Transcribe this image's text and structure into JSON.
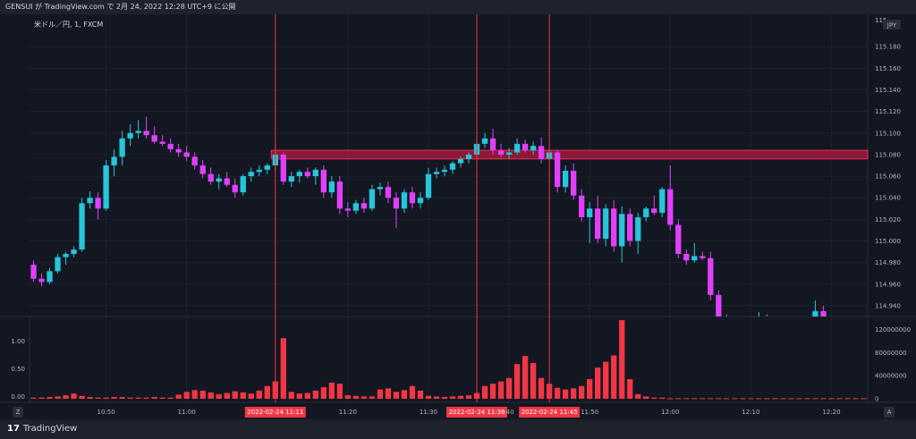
{
  "header": {
    "title": "GENSUI が TradingView.com で 2月 24, 2022 12:28 UTC+9 に公開"
  },
  "footer": {
    "brand": "TradingView",
    "logo_mark": "17",
    "left_button": "Z",
    "right_button": "A"
  },
  "colors": {
    "background": "#131722",
    "up": "#26c6da",
    "down": "#e040fb",
    "marker": "#f23645",
    "zone": "#a3173b",
    "grid": "#1e222d",
    "volume": "#f23645"
  },
  "chart_data": {
    "type": "candlestick",
    "symbol": "米ドル／円, 1, FXCM",
    "currency_badge": "JPY",
    "price_axis": {
      "ylim": [
        114.93,
        115.21
      ],
      "ticks": [
        "115.180",
        "115.160",
        "115.140",
        "115.120",
        "115.100",
        "115.080",
        "115.060",
        "115.040",
        "115.020",
        "115.000",
        "114.980",
        "114.960",
        "114.940"
      ],
      "top_label": "115"
    },
    "volume_panel": {
      "left_ticks": [
        "1.00",
        "0.50",
        "0.00"
      ],
      "right_ticks": [
        "120000000",
        "80000000",
        "40000000",
        "0"
      ],
      "ylim": [
        0,
        130000000
      ]
    },
    "time_axis": {
      "labels": [
        {
          "index": 9,
          "label": "10:50"
        },
        {
          "index": 19,
          "label": "11:00"
        },
        {
          "index": 39,
          "label": "11:20"
        },
        {
          "index": 49,
          "label": "11:30"
        },
        {
          "index": 59,
          "label": ":40"
        },
        {
          "index": 69,
          "label": "11:50"
        },
        {
          "index": 79,
          "label": "12:00"
        },
        {
          "index": 89,
          "label": "12:10"
        },
        {
          "index": 99,
          "label": "12:20"
        }
      ],
      "first_time": "10:41",
      "candle_count": 104
    },
    "markers": [
      {
        "index": 30,
        "label": "2022-02-24 11:11"
      },
      {
        "index": 55,
        "label": "2022-02-24 11:36"
      },
      {
        "index": 64,
        "label": "2022-02-24 11:45"
      }
    ],
    "resistance_zone": {
      "from_index": 30,
      "price_top": 115.084,
      "price_bottom": 115.076,
      "extends": "right"
    },
    "candles": [
      [
        114.978,
        114.982,
        114.962,
        114.965
      ],
      [
        114.965,
        114.97,
        114.958,
        114.962
      ],
      [
        114.962,
        114.975,
        114.96,
        114.972
      ],
      [
        114.972,
        114.988,
        114.97,
        114.985
      ],
      [
        114.985,
        114.99,
        114.978,
        114.988
      ],
      [
        114.988,
        114.995,
        114.985,
        114.992
      ],
      [
        114.992,
        115.04,
        114.99,
        115.035
      ],
      [
        115.035,
        115.046,
        115.03,
        115.04
      ],
      [
        115.04,
        115.045,
        115.02,
        115.03
      ],
      [
        115.03,
        115.075,
        115.028,
        115.07
      ],
      [
        115.07,
        115.085,
        115.06,
        115.078
      ],
      [
        115.078,
        115.102,
        115.07,
        115.095
      ],
      [
        115.095,
        115.108,
        115.088,
        115.1
      ],
      [
        115.1,
        115.112,
        115.095,
        115.102
      ],
      [
        115.102,
        115.115,
        115.095,
        115.098
      ],
      [
        115.098,
        115.106,
        115.09,
        115.092
      ],
      [
        115.092,
        115.098,
        115.088,
        115.09
      ],
      [
        115.09,
        115.095,
        115.082,
        115.085
      ],
      [
        115.085,
        115.09,
        115.078,
        115.082
      ],
      [
        115.082,
        115.088,
        115.074,
        115.078
      ],
      [
        115.078,
        115.082,
        115.066,
        115.07
      ],
      [
        115.07,
        115.075,
        115.058,
        115.062
      ],
      [
        115.062,
        115.068,
        115.052,
        115.055
      ],
      [
        115.055,
        115.062,
        115.048,
        115.058
      ],
      [
        115.058,
        115.064,
        115.05,
        115.052
      ],
      [
        115.052,
        115.058,
        115.04,
        115.045
      ],
      [
        115.045,
        115.062,
        115.042,
        115.06
      ],
      [
        115.06,
        115.068,
        115.055,
        115.064
      ],
      [
        115.064,
        115.07,
        115.06,
        115.066
      ],
      [
        115.066,
        115.072,
        115.062,
        115.07
      ],
      [
        115.07,
        115.082,
        115.066,
        115.08
      ],
      [
        115.08,
        115.082,
        115.052,
        115.055
      ],
      [
        115.055,
        115.064,
        115.05,
        115.06
      ],
      [
        115.06,
        115.066,
        115.054,
        115.064
      ],
      [
        115.064,
        115.068,
        115.058,
        115.06
      ],
      [
        115.06,
        115.068,
        115.052,
        115.066
      ],
      [
        115.066,
        115.07,
        115.04,
        115.045
      ],
      [
        115.045,
        115.06,
        115.04,
        115.055
      ],
      [
        115.055,
        115.06,
        115.025,
        115.03
      ],
      [
        115.03,
        115.036,
        115.022,
        115.028
      ],
      [
        115.028,
        115.038,
        115.025,
        115.035
      ],
      [
        115.035,
        115.04,
        115.026,
        115.03
      ],
      [
        115.03,
        115.052,
        115.028,
        115.048
      ],
      [
        115.048,
        115.054,
        115.042,
        115.05
      ],
      [
        115.05,
        115.055,
        115.035,
        115.04
      ],
      [
        115.04,
        115.045,
        115.012,
        115.03
      ],
      [
        115.03,
        115.048,
        115.026,
        115.045
      ],
      [
        115.045,
        115.05,
        115.03,
        115.035
      ],
      [
        115.035,
        115.045,
        115.03,
        115.04
      ],
      [
        115.04,
        115.068,
        115.038,
        115.062
      ],
      [
        115.062,
        115.068,
        115.058,
        115.064
      ],
      [
        115.064,
        115.07,
        115.06,
        115.066
      ],
      [
        115.066,
        115.074,
        115.062,
        115.072
      ],
      [
        115.072,
        115.078,
        115.068,
        115.076
      ],
      [
        115.076,
        115.082,
        115.072,
        115.08
      ],
      [
        115.08,
        115.095,
        115.076,
        115.09
      ],
      [
        115.09,
        115.1,
        115.086,
        115.095
      ],
      [
        115.095,
        115.104,
        115.08,
        115.084
      ],
      [
        115.084,
        115.09,
        115.078,
        115.08
      ],
      [
        115.08,
        115.086,
        115.076,
        115.082
      ],
      [
        115.082,
        115.095,
        115.08,
        115.09
      ],
      [
        115.09,
        115.094,
        115.082,
        115.084
      ],
      [
        115.084,
        115.092,
        115.08,
        115.088
      ],
      [
        115.088,
        115.096,
        115.072,
        115.076
      ],
      [
        115.076,
        115.084,
        115.074,
        115.082
      ],
      [
        115.082,
        115.084,
        115.045,
        115.05
      ],
      [
        115.05,
        115.07,
        115.045,
        115.065
      ],
      [
        115.065,
        115.072,
        115.038,
        115.042
      ],
      [
        115.042,
        115.048,
        115.018,
        115.022
      ],
      [
        115.022,
        115.036,
        114.998,
        115.03
      ],
      [
        115.03,
        115.042,
        114.998,
        115.002
      ],
      [
        115.002,
        115.034,
        114.995,
        115.03
      ],
      [
        115.03,
        115.038,
        114.99,
        114.995
      ],
      [
        114.995,
        115.032,
        114.98,
        115.025
      ],
      [
        115.025,
        115.03,
        114.995,
        115.0
      ],
      [
        115.0,
        115.026,
        114.988,
        115.022
      ],
      [
        115.022,
        115.032,
        115.018,
        115.03
      ],
      [
        115.03,
        115.042,
        115.024,
        115.026
      ],
      [
        115.026,
        115.05,
        115.022,
        115.048
      ],
      [
        115.048,
        115.07,
        115.01,
        115.015
      ],
      [
        115.015,
        115.02,
        114.984,
        114.988
      ],
      [
        114.988,
        114.992,
        114.978,
        114.982
      ],
      [
        114.982,
        114.998,
        114.98,
        114.986
      ],
      [
        114.986,
        114.99,
        114.982,
        114.984
      ],
      [
        114.984,
        114.99,
        114.945,
        114.95
      ],
      [
        114.95,
        114.954,
        114.925,
        114.928
      ],
      [
        114.928,
        114.932,
        114.92,
        114.926
      ],
      [
        114.926,
        114.93,
        114.92,
        114.924
      ],
      [
        114.924,
        114.93,
        114.918,
        114.922
      ],
      [
        114.922,
        114.93,
        114.918,
        114.926
      ],
      [
        114.926,
        114.934,
        114.92,
        114.928
      ],
      [
        114.928,
        114.932,
        114.922,
        114.924
      ],
      [
        114.924,
        114.93,
        114.918,
        114.92
      ],
      [
        114.92,
        114.926,
        114.916,
        114.922
      ],
      [
        114.922,
        114.928,
        114.918,
        114.925
      ],
      [
        114.925,
        114.93,
        114.92,
        114.924
      ],
      [
        114.924,
        114.928,
        114.92,
        114.922
      ],
      [
        114.922,
        114.945,
        114.918,
        114.935
      ],
      [
        114.935,
        114.94,
        114.922,
        114.926
      ],
      [
        114.926,
        114.93,
        114.92,
        114.924
      ],
      [
        114.924,
        114.928,
        114.92,
        114.923
      ],
      [
        114.923,
        114.928,
        114.919,
        114.922
      ],
      [
        114.922,
        114.926,
        114.918,
        114.921
      ],
      [
        114.921,
        114.925,
        114.918,
        114.92
      ]
    ],
    "volumes": [
      2000000,
      2000000,
      3000000,
      4000000,
      6000000,
      9000000,
      5000000,
      3000000,
      2000000,
      2000000,
      3000000,
      3000000,
      2000000,
      2000000,
      2000000,
      3000000,
      2000000,
      2000000,
      7000000,
      12000000,
      15000000,
      14000000,
      11000000,
      8000000,
      10000000,
      13000000,
      11000000,
      9000000,
      14000000,
      22000000,
      30000000,
      105000000,
      12000000,
      9000000,
      10000000,
      14000000,
      20000000,
      28000000,
      26000000,
      6000000,
      5000000,
      4000000,
      4000000,
      16000000,
      18000000,
      12000000,
      15000000,
      22000000,
      14000000,
      5000000,
      4000000,
      3000000,
      4000000,
      5000000,
      6000000,
      10000000,
      22000000,
      26000000,
      30000000,
      36000000,
      60000000,
      74000000,
      62000000,
      36000000,
      26000000,
      19000000,
      16000000,
      18000000,
      22000000,
      34000000,
      54000000,
      64000000,
      75000000,
      136000000,
      34000000,
      8000000,
      4000000,
      2000000,
      2000000,
      1000000,
      1000000,
      1000000,
      1000000,
      1000000,
      1000000,
      1000000,
      1000000,
      1000000,
      1000000,
      1000000,
      1000000,
      1000000,
      1000000,
      1000000,
      1000000,
      1000000,
      1000000,
      1000000,
      1000000,
      1000000,
      1000000,
      1000000,
      1000000,
      1000000
    ]
  }
}
